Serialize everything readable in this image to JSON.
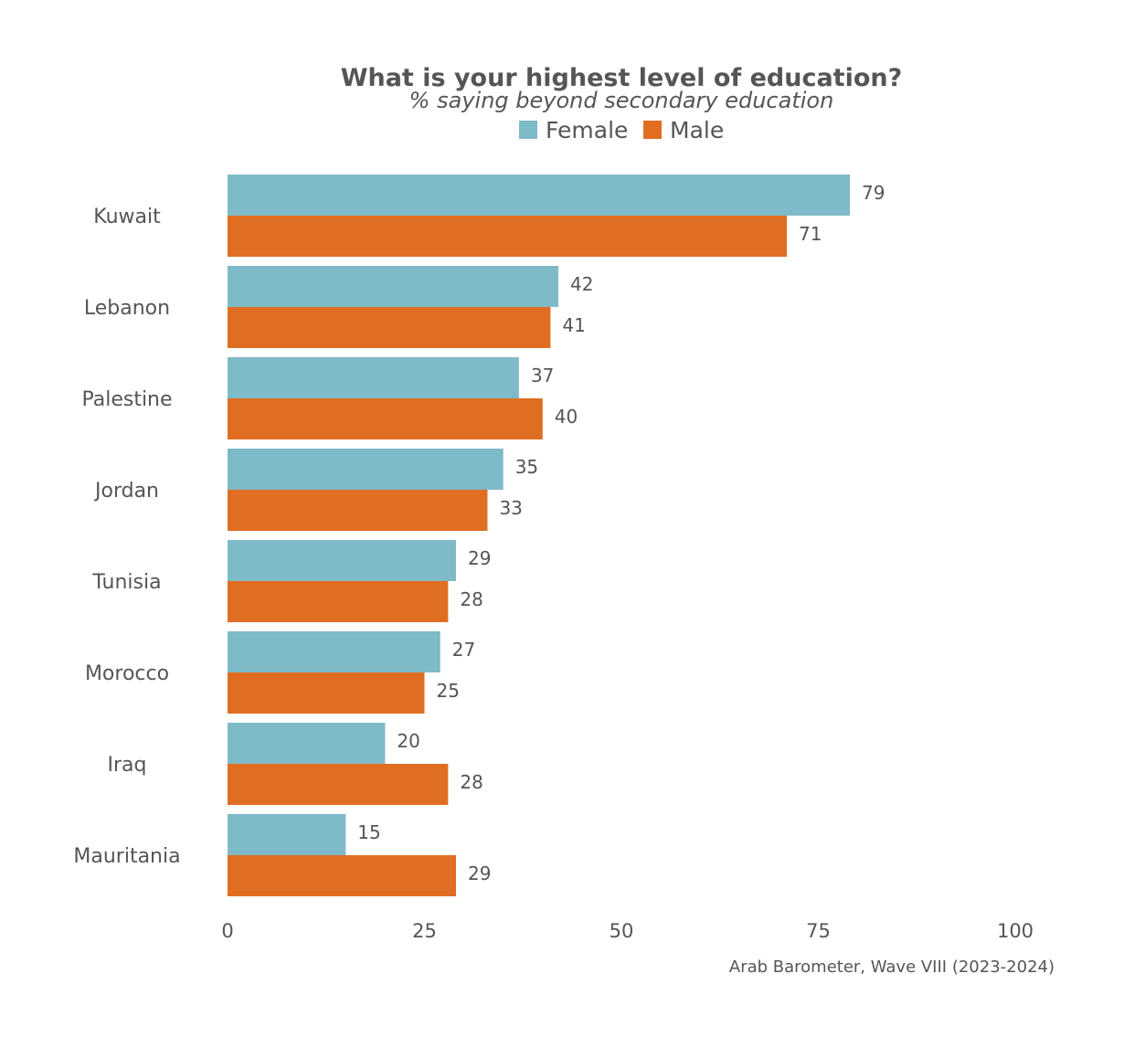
{
  "chart_data": {
    "type": "bar",
    "orientation": "horizontal",
    "title": "What is your highest level of education?",
    "subtitle": "% saying beyond secondary education",
    "categories": [
      "Kuwait",
      "Lebanon",
      "Palestine",
      "Jordan",
      "Tunisia",
      "Morocco",
      "Iraq",
      "Mauritania"
    ],
    "series": [
      {
        "name": "Female",
        "color": "#7fbac8",
        "values": [
          79,
          42,
          37,
          35,
          29,
          27,
          20,
          15
        ]
      },
      {
        "name": "Male",
        "color": "#e06e22",
        "values": [
          71,
          41,
          40,
          33,
          28,
          25,
          28,
          29
        ]
      }
    ],
    "xlim": [
      0,
      100
    ],
    "xticks": [
      "0",
      "25",
      "50",
      "75",
      "100"
    ],
    "grid": false,
    "legend_position": "top",
    "caption": "Arab Barometer, Wave VIII (2023-2024)"
  }
}
